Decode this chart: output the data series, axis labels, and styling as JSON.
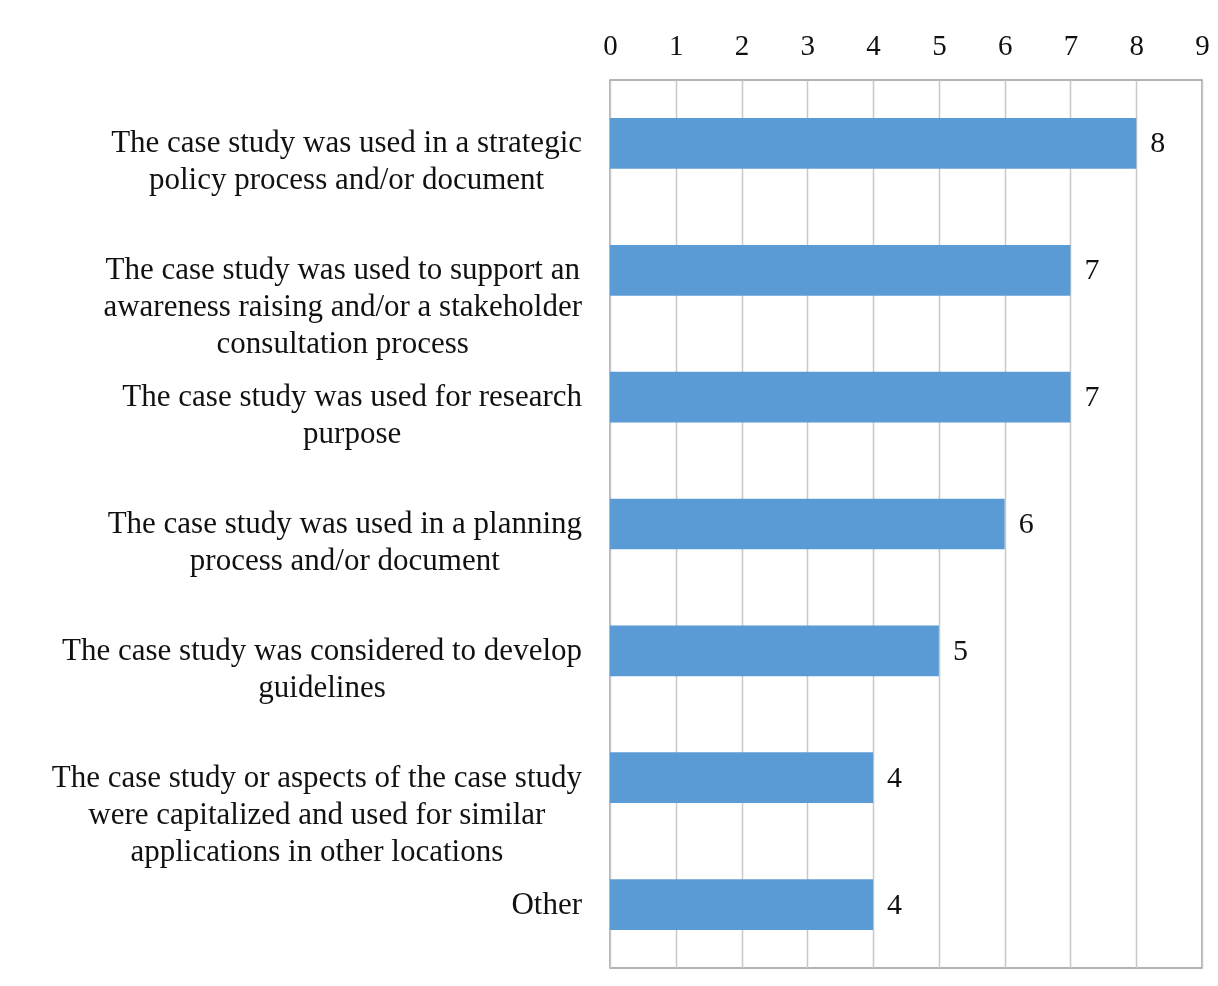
{
  "chart_data": {
    "type": "bar",
    "orientation": "horizontal",
    "categories": [
      "The case study was used in a strategic policy process and/or document",
      "The case study was used to support an awareness raising and/or a stakeholder consultation process",
      "The case study was used for research purpose",
      "The case study was used in a planning process and/or document",
      "The case study was considered to develop guidelines",
      "The case study or aspects of the case study were capitalized and used for similar applications in other locations",
      "Other"
    ],
    "values": [
      8,
      7,
      7,
      6,
      5,
      4,
      4
    ],
    "color": "#5b9bd5",
    "xlim": [
      0,
      9
    ],
    "xticks": [
      0,
      1,
      2,
      3,
      4,
      5,
      6,
      7,
      8,
      9
    ],
    "grid": "x",
    "data_labels": true
  }
}
